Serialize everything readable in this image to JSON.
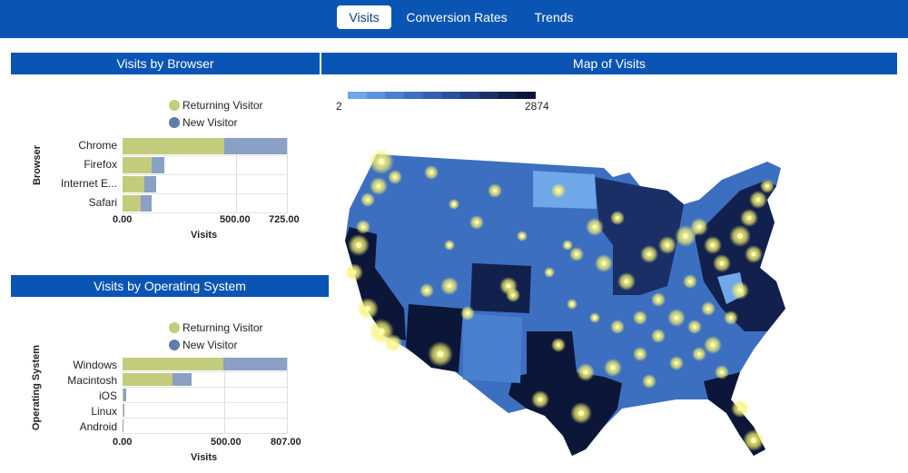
{
  "nav": {
    "tabs": [
      {
        "label": "Visits",
        "active": true
      },
      {
        "label": "Conversion Rates",
        "active": false
      },
      {
        "label": "Trends",
        "active": false
      }
    ]
  },
  "colors": {
    "brand": "#0a55b3",
    "returning": "#c2cc7c",
    "new": "#8aa0c4"
  },
  "browser_panel": {
    "title": "Visits by Browser",
    "legend": [
      "Returning Visitor",
      "New Visitor"
    ],
    "y_title": "Browser",
    "x_title": "Visits",
    "ticks": [
      "0.00",
      "500.00",
      "725.00"
    ]
  },
  "os_panel": {
    "title": "Visits by Operating System",
    "legend": [
      "Returning Visitor",
      "New Visitor"
    ],
    "y_title": "Operating System",
    "x_title": "Visits",
    "ticks": [
      "0.00",
      "500.00",
      "807.00"
    ]
  },
  "map_panel": {
    "title": "Map of Visits",
    "scale_min": "2",
    "scale_max": "2874",
    "scale_colors": [
      "#6fa7e8",
      "#5a93dd",
      "#4a80d0",
      "#3d6fc0",
      "#3360ae",
      "#2b5199",
      "#223f80",
      "#1a2f66",
      "#12204d",
      "#0c1638"
    ]
  },
  "chart_data": [
    {
      "type": "bar",
      "title": "Visits by Browser",
      "xlabel": "Visits",
      "ylabel": "Browser",
      "xlim": [
        0,
        725
      ],
      "categories": [
        "Chrome",
        "Firefox",
        "Internet E...",
        "Safari"
      ],
      "series": [
        {
          "name": "Returning Visitor",
          "values": [
            450,
            130,
            95,
            80
          ]
        },
        {
          "name": "New Visitor",
          "values": [
            275,
            55,
            55,
            50
          ]
        }
      ],
      "stacked": true
    },
    {
      "type": "bar",
      "title": "Visits by Operating System",
      "xlabel": "Visits",
      "ylabel": "Operating System",
      "xlim": [
        0,
        807
      ],
      "categories": [
        "Windows",
        "Macintosh",
        "iOS",
        "Linux",
        "Android"
      ],
      "series": [
        {
          "name": "Returning Visitor",
          "values": [
            497,
            245,
            6,
            4,
            2
          ]
        },
        {
          "name": "New Visitor",
          "values": [
            310,
            95,
            12,
            6,
            3
          ]
        }
      ],
      "stacked": true
    }
  ]
}
